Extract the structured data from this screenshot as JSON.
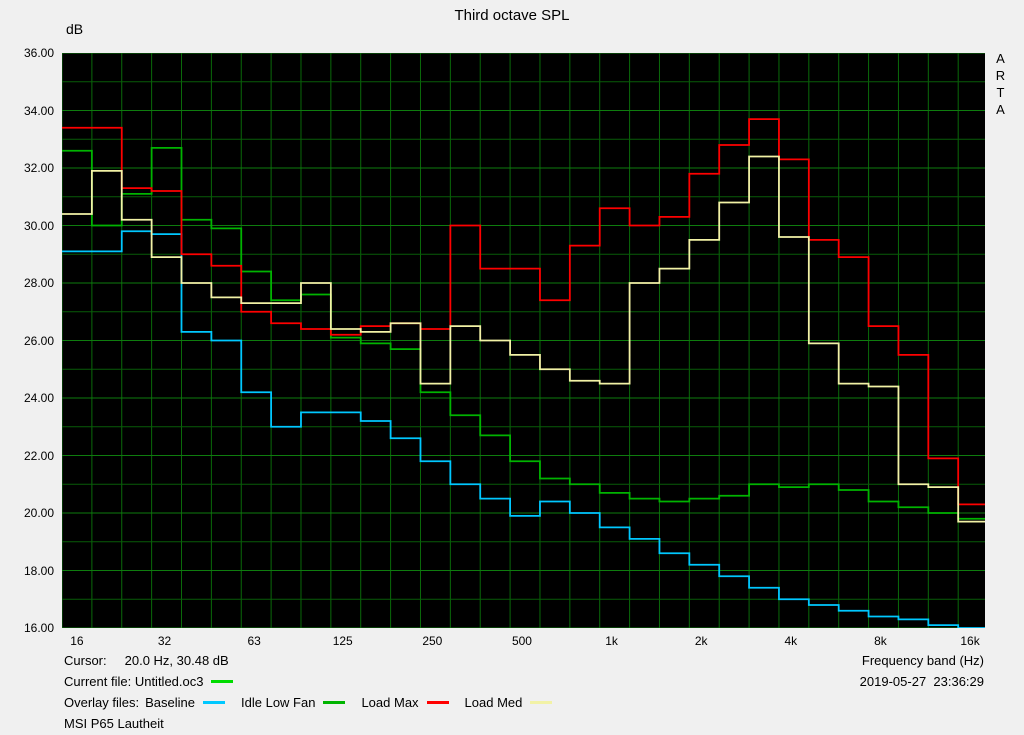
{
  "header": {
    "title": "Third octave SPL",
    "y_unit": "dB",
    "brand": "ARTA"
  },
  "axes": {
    "y": {
      "min": 16,
      "max": 36,
      "major_step": 2,
      "tick_labels": [
        "36.00",
        "34.00",
        "32.00",
        "30.00",
        "28.00",
        "26.00",
        "24.00",
        "22.00",
        "20.00",
        "18.00",
        "16.00"
      ]
    },
    "x": {
      "label": "Frequency band (Hz)",
      "tick_freqs": [
        16,
        31.5,
        63,
        125,
        250,
        500,
        1000,
        2000,
        4000,
        8000,
        16000
      ],
      "tick_labels": [
        "16",
        "32",
        "63",
        "125",
        "250",
        "500",
        "1k",
        "2k",
        "4k",
        "8k",
        "16k"
      ]
    }
  },
  "footer": {
    "cursor_label": "Cursor:",
    "cursor_value": "20.0 Hz, 30.48 dB",
    "current_file_label": "Current file:",
    "current_file_name": "Untitled.oc3",
    "current_file_color": "#00dc00",
    "overlay_label": "Overlay files:",
    "timestamp": "2019-05-27  23:36:29",
    "note": "MSI P65 Lautheit"
  },
  "chart_data": {
    "type": "line",
    "subtype": "third-octave-step",
    "title": "Third octave SPL",
    "xlabel": "Frequency band (Hz)",
    "ylabel": "dB",
    "ylim": [
      16,
      36
    ],
    "grid": {
      "bg": "#000000",
      "major_color": "#0e7c0e",
      "minor_color": "#085c08",
      "v_color": "#0a6a0a"
    },
    "x_bands": [
      16,
      20,
      25,
      31.5,
      40,
      50,
      63,
      80,
      100,
      125,
      160,
      200,
      250,
      315,
      400,
      500,
      630,
      800,
      1000,
      1250,
      1600,
      2000,
      2500,
      3150,
      4000,
      5000,
      6300,
      8000,
      10000,
      12500,
      16000
    ],
    "series": [
      {
        "name": "Baseline",
        "color": "#00c8ff",
        "values": [
          29.1,
          29.1,
          29.8,
          29.7,
          26.3,
          26.0,
          24.2,
          23.0,
          23.5,
          23.5,
          23.2,
          22.6,
          21.8,
          21.0,
          20.5,
          19.9,
          20.4,
          20.0,
          19.5,
          19.1,
          18.6,
          18.2,
          17.8,
          17.4,
          17.0,
          16.8,
          16.6,
          16.4,
          16.3,
          16.1,
          16.0
        ]
      },
      {
        "name": "Idle Low Fan",
        "color": "#00b400",
        "values": [
          32.6,
          30.0,
          31.1,
          32.7,
          30.2,
          29.9,
          28.4,
          27.4,
          27.6,
          26.1,
          25.9,
          25.7,
          24.2,
          23.4,
          22.7,
          21.8,
          21.2,
          21.0,
          20.7,
          20.5,
          20.4,
          20.5,
          20.6,
          21.0,
          20.9,
          21.0,
          20.8,
          20.4,
          20.2,
          20.0,
          19.8
        ]
      },
      {
        "name": "Load Max",
        "color": "#ff0000",
        "values": [
          33.4,
          33.4,
          31.3,
          31.2,
          29.0,
          28.6,
          27.0,
          26.6,
          26.4,
          26.2,
          26.5,
          26.6,
          26.4,
          30.0,
          28.5,
          28.5,
          27.4,
          29.3,
          30.6,
          30.0,
          30.3,
          31.8,
          32.8,
          33.7,
          32.3,
          29.5,
          28.9,
          26.5,
          25.5,
          21.9,
          20.3
        ]
      },
      {
        "name": "Load Med",
        "color": "#f2f2a6",
        "values": [
          30.4,
          31.9,
          30.2,
          28.9,
          28.0,
          27.5,
          27.3,
          27.3,
          28.0,
          26.4,
          26.3,
          26.6,
          24.5,
          26.5,
          26.0,
          25.5,
          25.0,
          24.6,
          24.5,
          28.0,
          28.5,
          29.5,
          30.8,
          32.4,
          29.6,
          25.9,
          24.5,
          24.4,
          21.0,
          20.9,
          19.7
        ]
      }
    ]
  }
}
